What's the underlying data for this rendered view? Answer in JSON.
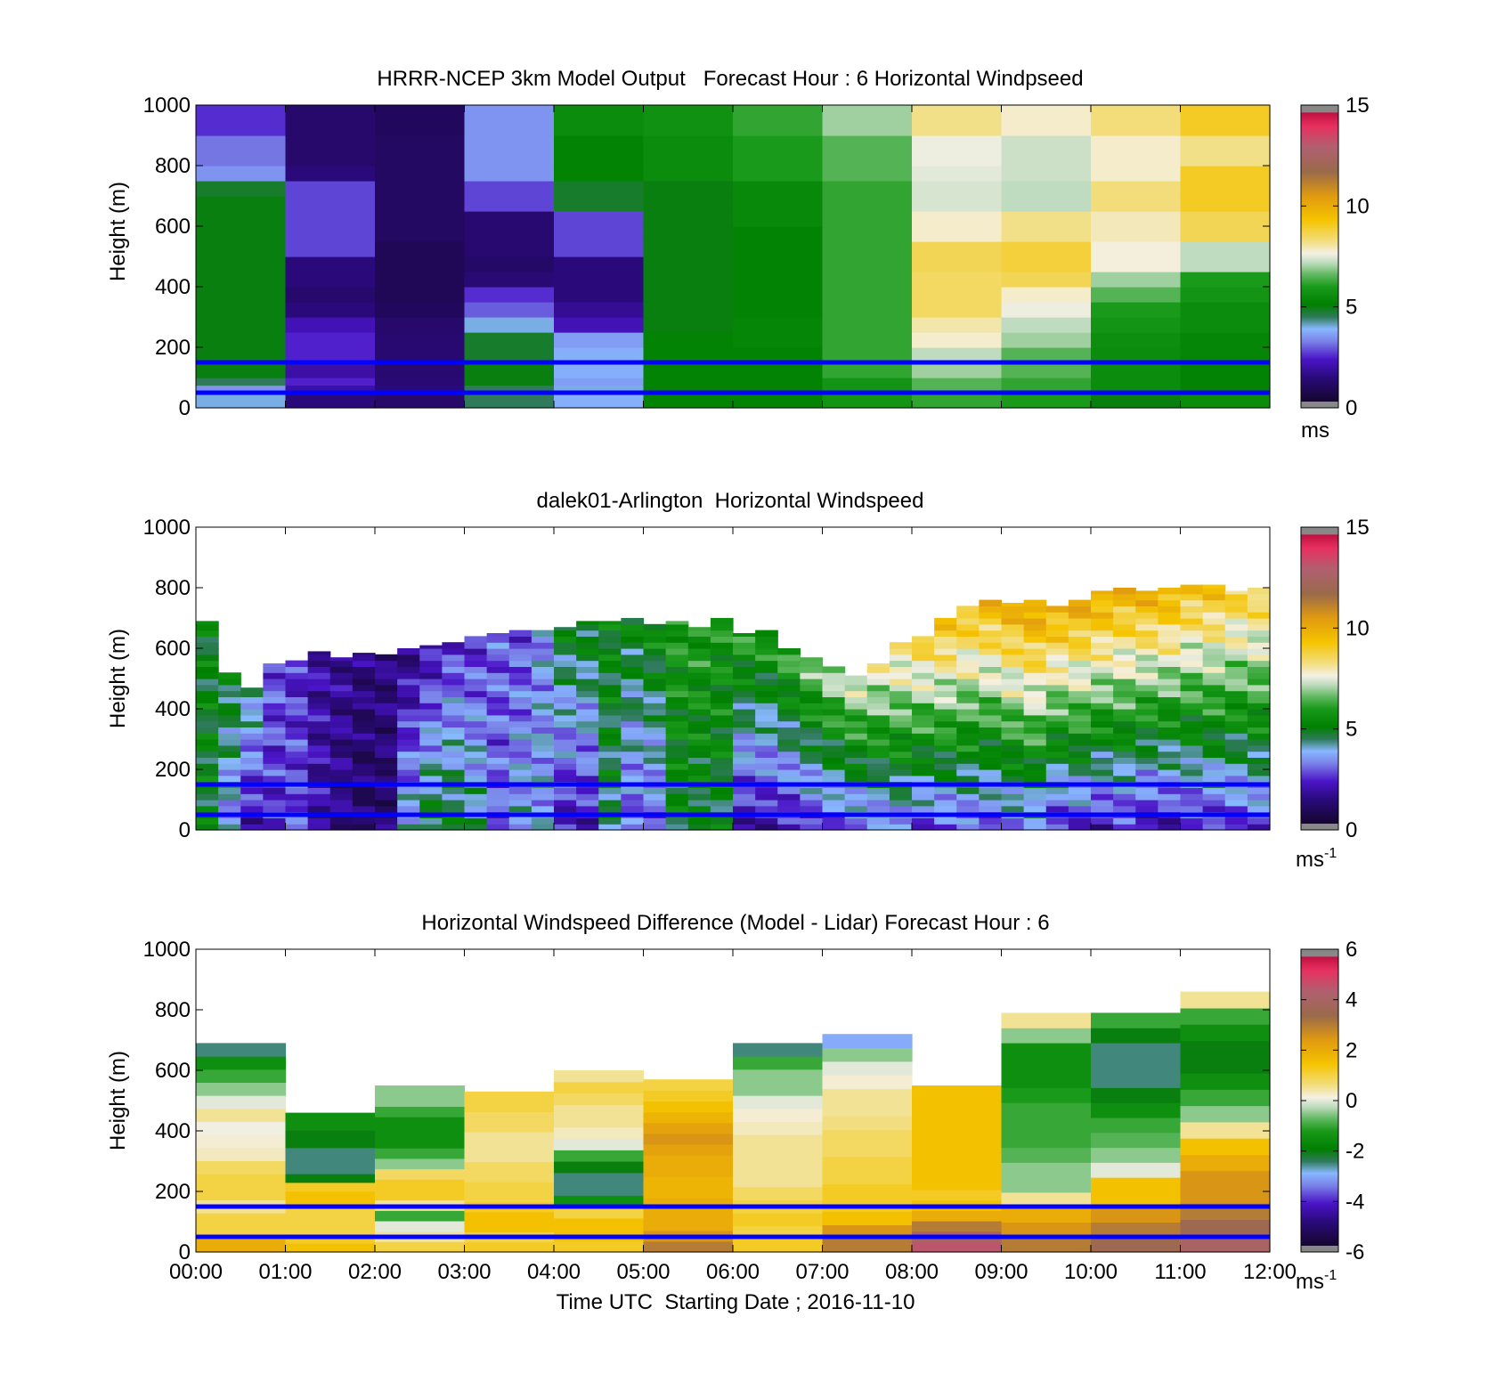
{
  "chart_data": [
    {
      "type": "heatmap",
      "title": "HRRR-NCEP 3km Model Output   Forecast Hour : 6 Horizontal Windpseed",
      "xlabel": "",
      "ylabel": "Height (m)",
      "ylim": [
        0,
        1000
      ],
      "yticks": [
        "0",
        "200",
        "400",
        "600",
        "800",
        "1000"
      ],
      "xlim": [
        0,
        12
      ],
      "xticklabels_shown": false,
      "colorbar": {
        "ticks": [
          "0",
          "5",
          "10",
          "15"
        ],
        "range": [
          0,
          15
        ],
        "unit": "ms",
        "unit_sup": "",
        "scale": "speed"
      },
      "reference_lines_m": [
        50,
        150
      ],
      "bin_heights_m": [
        0,
        25,
        50,
        75,
        100,
        150,
        200,
        250,
        300,
        350,
        400,
        450,
        500,
        550,
        600,
        650,
        700,
        750,
        800,
        900
      ],
      "columns": [
        [
          4,
          4,
          3.5,
          4.5,
          5,
          5,
          5,
          5,
          5,
          5,
          5,
          5,
          5,
          5,
          5,
          5,
          4.8,
          3.5,
          3.2,
          2.6
        ],
        [
          1.5,
          1.5,
          2,
          2.5,
          2,
          2.5,
          2.5,
          2.2,
          1.5,
          1.2,
          1.5,
          1.5,
          2.8,
          2.8,
          2.8,
          2.8,
          2.8,
          1.5,
          1.2,
          1.2
        ],
        [
          1.2,
          1.2,
          1.5,
          1.4,
          1.3,
          1.3,
          1.3,
          1.2,
          0.9,
          0.8,
          0.8,
          0.8,
          0.8,
          1,
          1,
          1,
          1,
          1,
          1,
          0.9
        ],
        [
          4.5,
          4.5,
          4.5,
          5,
          5,
          4.8,
          4.8,
          4,
          3,
          2.6,
          1.4,
          1.1,
          1.3,
          1.3,
          1.3,
          2.8,
          2.8,
          3.5,
          3.5,
          3.5
        ],
        [
          3.8,
          3.8,
          4,
          3.6,
          3.8,
          3.8,
          3.6,
          2.2,
          1.8,
          1.5,
          1.5,
          1.5,
          2.8,
          2.8,
          2.8,
          4.8,
          4.8,
          5.2,
          5.2,
          5.5
        ],
        [
          5.2,
          5.2,
          5.2,
          5.2,
          5.2,
          5.2,
          5.2,
          5,
          5,
          5,
          5,
          5,
          5,
          5,
          5,
          5,
          5,
          5.5,
          5.5,
          5.7
        ],
        [
          5.2,
          5.2,
          5.2,
          5.2,
          5.2,
          5.2,
          5.3,
          5.3,
          5.2,
          5.2,
          5.2,
          5.2,
          5.2,
          5.2,
          5.4,
          5.4,
          5.4,
          6,
          6,
          6.2
        ],
        [
          5.8,
          5.8,
          5.8,
          5.8,
          6.2,
          6.2,
          6.2,
          6.2,
          6.2,
          6.2,
          6.2,
          6.2,
          6.2,
          6.2,
          6.2,
          6.2,
          6.2,
          6.5,
          6.5,
          7
        ],
        [
          6.2,
          6.2,
          6.5,
          6.5,
          7,
          7.2,
          7.8,
          8,
          8.5,
          8.5,
          8.5,
          8.6,
          8.6,
          7.8,
          7.8,
          7.4,
          7.4,
          7.5,
          7.6,
          8.2
        ],
        [
          6,
          6,
          6.2,
          6.2,
          6.5,
          6.5,
          7,
          7.2,
          7.6,
          7.8,
          8.6,
          8.8,
          8.8,
          8.2,
          8.2,
          7.2,
          7.2,
          7.3,
          7.3,
          7.8
        ],
        [
          5,
          5,
          5.5,
          5.5,
          5.5,
          5.5,
          5.6,
          5.8,
          6,
          6.5,
          7,
          7.7,
          7.7,
          7.9,
          7.9,
          8.3,
          8.3,
          7.8,
          7.8,
          8.3
        ],
        [
          5.5,
          5.5,
          5.2,
          5.2,
          5.2,
          5.3,
          5.3,
          5.5,
          5.5,
          5.8,
          6,
          7.2,
          7.2,
          8.6,
          8.6,
          9,
          9,
          9,
          8.2,
          9
        ]
      ]
    },
    {
      "type": "heatmap",
      "title": "dalek01-Arlington  Horizontal Windspeed",
      "xlabel": "",
      "ylabel": "Height (m)",
      "ylim": [
        0,
        1000
      ],
      "yticks": [
        "0",
        "200",
        "400",
        "600",
        "800",
        "1000"
      ],
      "xlim": [
        0,
        12
      ],
      "xticklabels_shown": false,
      "colorbar": {
        "ticks": [
          "0",
          "5",
          "10",
          "15"
        ],
        "range": [
          0,
          15
        ],
        "unit": "ms",
        "unit_sup": "-1",
        "scale": "speed"
      },
      "reference_lines_m": [
        50,
        150
      ],
      "profile_tops_m": [
        690,
        520,
        470,
        550,
        560,
        590,
        570,
        585,
        580,
        600,
        610,
        620,
        640,
        650,
        660,
        660,
        670,
        690,
        690,
        700,
        680,
        690,
        670,
        700,
        650,
        660,
        600,
        570,
        540,
        510,
        550,
        620,
        640,
        700,
        740,
        760,
        750,
        760,
        740,
        760,
        790,
        800,
        790,
        800,
        810,
        810,
        790,
        800
      ],
      "profile_speeds_at_surface": [
        5,
        3.5,
        2,
        2.5,
        3,
        2,
        1.5,
        1,
        1.2,
        4,
        5,
        5,
        4.5,
        3,
        3.8,
        3.8,
        2.2,
        2.2,
        4.5,
        3,
        3,
        4.8,
        4.8,
        4.8,
        2,
        2,
        2.2,
        2.5,
        2.8,
        3,
        3.2,
        3.4,
        2.8,
        3,
        3,
        2.8,
        3.2,
        3.4,
        2.5,
        2.5,
        2.2,
        2.5,
        2,
        2,
        2.4,
        2.5,
        2.6,
        2.8
      ],
      "profile_speeds_at_top": [
        5,
        5,
        4.5,
        3,
        2.5,
        2,
        1.8,
        1.5,
        1.5,
        1.5,
        2,
        2.5,
        2.5,
        3,
        2.8,
        3.5,
        5,
        5.2,
        5.2,
        5.2,
        5.5,
        6,
        6,
        5.8,
        6.2,
        6.2,
        6.5,
        7,
        7.5,
        7.8,
        8,
        8.5,
        9,
        9.5,
        9.5,
        9.8,
        10,
        10.5,
        10,
        10.2,
        10.2,
        10,
        10,
        10,
        9.5,
        9.5,
        9,
        9
      ]
    },
    {
      "type": "heatmap",
      "title": "Horizontal Windspeed Difference (Model - Lidar) Forecast Hour : 6",
      "xlabel": "Time UTC  Starting Date ; 2016-11-10",
      "ylabel": "Height (m)",
      "ylim": [
        0,
        1000
      ],
      "yticks": [
        "0",
        "200",
        "400",
        "600",
        "800",
        "1000"
      ],
      "xlim": [
        0,
        12
      ],
      "xticks": [
        "00:00",
        "01:00",
        "02:00",
        "03:00",
        "04:00",
        "05:00",
        "06:00",
        "07:00",
        "08:00",
        "09:00",
        "10:00",
        "11:00",
        "12:00"
      ],
      "colorbar": {
        "ticks": [
          "-6",
          "-4",
          "-2",
          "0",
          "2",
          "4",
          "6"
        ],
        "range": [
          -6,
          6
        ],
        "unit": "ms",
        "unit_sup": "-1",
        "scale": "diff"
      },
      "reference_lines_m": [
        50,
        150
      ],
      "column_tops_m": [
        690,
        460,
        550,
        530,
        600,
        570,
        690,
        720,
        550,
        790,
        790,
        860
      ],
      "column_profiles": [
        [
          2,
          1,
          1,
          0.5,
          1,
          1,
          0.8,
          0.3,
          0.2,
          0.1,
          0.5,
          0,
          -0.5,
          -1,
          -1.5,
          -2.5
        ],
        [
          1.5,
          1.2,
          1,
          1,
          1,
          1.5,
          1.5,
          1.2,
          -2,
          -2.5,
          -2.5,
          -2.5,
          -2,
          -2,
          -1.5,
          -1.5
        ],
        [
          1,
          0.5,
          0,
          -1,
          0.5,
          1.2,
          1.2,
          0.8,
          -0.5,
          -1,
          -1.5,
          -1.5,
          -1.5,
          -1,
          -0.5,
          -0.5
        ],
        [
          1.2,
          1,
          1.5,
          1.5,
          1.2,
          1,
          1,
          0.8,
          0.8,
          0.5,
          0.5,
          0.5,
          0.8,
          0.8,
          1,
          1
        ],
        [
          1.2,
          1.5,
          1.5,
          1,
          -1.5,
          -2.5,
          -2.5,
          -2,
          -1,
          0,
          0.3,
          0.5,
          0.5,
          0.8,
          1,
          0.5
        ],
        [
          3,
          2.5,
          2,
          2,
          2,
          1.8,
          1.8,
          2,
          2,
          2.2,
          2.5,
          2.2,
          1.8,
          1.5,
          1.2,
          1
        ],
        [
          1.2,
          1,
          1.2,
          1,
          0.8,
          0.5,
          0.5,
          0.5,
          0.5,
          0.3,
          0.2,
          0,
          -0.5,
          -0.5,
          -1,
          -2.5
        ],
        [
          3,
          2.5,
          1.5,
          1.2,
          1.2,
          1,
          1,
          0.8,
          0.8,
          0.6,
          0.5,
          0.5,
          0.2,
          0,
          -0.5,
          -3
        ],
        [
          4.5,
          4,
          3,
          2,
          1.5,
          1.2,
          1.5,
          1.5,
          1.5,
          1.5,
          1.5,
          1.5,
          1.5,
          1.5,
          1.5,
          1.5
        ],
        [
          3,
          2.5,
          2,
          0.5,
          -0.5,
          -0.5,
          -0.8,
          -1,
          -1,
          -1,
          -1.2,
          -1.5,
          -1.5,
          -1.5,
          -0.5,
          0.5
        ],
        [
          3.5,
          3,
          2.5,
          1.5,
          1.5,
          0,
          -0.5,
          -0.8,
          -1,
          -1.5,
          -2,
          -2.5,
          -2.5,
          -2.5,
          -2,
          -1
        ],
        [
          4,
          3.5,
          3,
          2.5,
          2.5,
          2,
          1.5,
          0.5,
          -0.5,
          -1,
          -1.5,
          -2,
          -2,
          -1.5,
          -1,
          0.5
        ]
      ]
    }
  ]
}
